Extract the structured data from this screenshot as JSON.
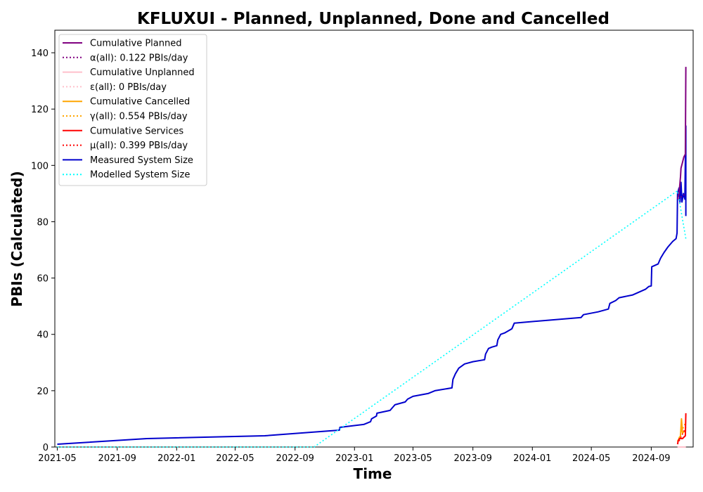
{
  "chart_data": {
    "type": "line",
    "title": "KFLUXUI - Planned, Unplanned, Done  and Cancelled",
    "xlabel": "Time",
    "ylabel": "PBIs (Calculated)",
    "xlim": [
      "2021-04-26",
      "2024-11-26"
    ],
    "ylim": [
      0,
      148
    ],
    "x_ticks": [
      "2021-05",
      "2021-09",
      "2022-01",
      "2022-05",
      "2022-09",
      "2023-01",
      "2023-05",
      "2023-09",
      "2024-01",
      "2024-05",
      "2024-09"
    ],
    "y_ticks": [
      0,
      20,
      40,
      60,
      80,
      100,
      120,
      140
    ],
    "grid": false,
    "legend_position": "upper left",
    "series": [
      {
        "name": "Cumulative Planned",
        "color": "#800080",
        "style": "solid",
        "points": [
          [
            "2024-10-25",
            88
          ],
          [
            "2024-10-28",
            90
          ],
          [
            "2024-10-31",
            96
          ],
          [
            "2024-11-01",
            99
          ],
          [
            "2024-11-04",
            101
          ],
          [
            "2024-11-07",
            103
          ],
          [
            "2024-11-10",
            104
          ],
          [
            "2024-11-11",
            135
          ]
        ]
      },
      {
        "name": "α(all): 0.122 PBIs/day",
        "color": "#800080",
        "style": "dotted",
        "points": [
          [
            "2024-10-25",
            88
          ],
          [
            "2024-11-11",
            90
          ]
        ]
      },
      {
        "name": "Cumulative Unplanned",
        "color": "#ffc0cb",
        "style": "solid",
        "points": [
          [
            "2024-10-25",
            0
          ],
          [
            "2024-11-11",
            0
          ]
        ]
      },
      {
        "name": "ε(all): 0 PBIs/day",
        "color": "#ffc0cb",
        "style": "dotted",
        "points": [
          [
            "2024-10-25",
            0
          ],
          [
            "2024-11-11",
            0
          ]
        ]
      },
      {
        "name": "Cumulative Cancelled",
        "color": "#ffa500",
        "style": "solid",
        "points": [
          [
            "2024-10-25",
            2
          ],
          [
            "2024-10-31",
            4
          ],
          [
            "2024-11-02",
            10
          ],
          [
            "2024-11-04",
            5
          ],
          [
            "2024-11-11",
            6
          ]
        ]
      },
      {
        "name": "γ(all): 0.554 PBIs/day",
        "color": "#ffa500",
        "style": "dotted",
        "points": [
          [
            "2024-10-25",
            2
          ],
          [
            "2024-11-11",
            9
          ]
        ]
      },
      {
        "name": "Cumulative Services",
        "color": "#ff0000",
        "style": "solid",
        "points": [
          [
            "2024-10-25",
            1
          ],
          [
            "2024-10-26",
            2
          ],
          [
            "2024-10-29",
            3
          ],
          [
            "2024-11-04",
            3
          ],
          [
            "2024-11-10",
            4
          ],
          [
            "2024-11-11",
            12
          ]
        ]
      },
      {
        "name": "μ(all): 0.399 PBIs/day",
        "color": "#ff0000",
        "style": "dotted",
        "points": [
          [
            "2024-10-25",
            1
          ],
          [
            "2024-11-11",
            7
          ]
        ]
      },
      {
        "name": "Measured System Size",
        "color": "#0000cd",
        "style": "solid",
        "points": [
          [
            "2021-05-01",
            1
          ],
          [
            "2021-11-01",
            3
          ],
          [
            "2022-07-01",
            4
          ],
          [
            "2022-12-01",
            6
          ],
          [
            "2022-12-02",
            7
          ],
          [
            "2023-01-20",
            8
          ],
          [
            "2023-02-03",
            9
          ],
          [
            "2023-02-05",
            10
          ],
          [
            "2023-02-15",
            11
          ],
          [
            "2023-02-16",
            12
          ],
          [
            "2023-03-15",
            13
          ],
          [
            "2023-03-25",
            15
          ],
          [
            "2023-04-15",
            16
          ],
          [
            "2023-04-20",
            17
          ],
          [
            "2023-05-01",
            18
          ],
          [
            "2023-06-01",
            19
          ],
          [
            "2023-06-15",
            20
          ],
          [
            "2023-07-20",
            21
          ],
          [
            "2023-07-22",
            24
          ],
          [
            "2023-07-27",
            26
          ],
          [
            "2023-08-03",
            28
          ],
          [
            "2023-08-15",
            29.5
          ],
          [
            "2023-09-01",
            30.3
          ],
          [
            "2023-09-25",
            31
          ],
          [
            "2023-09-27",
            33
          ],
          [
            "2023-10-03",
            35
          ],
          [
            "2023-10-10",
            35.5
          ],
          [
            "2023-10-20",
            36
          ],
          [
            "2023-10-22",
            38
          ],
          [
            "2023-10-28",
            40
          ],
          [
            "2023-11-05",
            40.5
          ],
          [
            "2023-11-20",
            42
          ],
          [
            "2023-11-25",
            44
          ],
          [
            "2024-04-10",
            46
          ],
          [
            "2024-04-15",
            47
          ],
          [
            "2024-05-15",
            48
          ],
          [
            "2024-06-05",
            49
          ],
          [
            "2024-06-08",
            51
          ],
          [
            "2024-06-20",
            52
          ],
          [
            "2024-06-27",
            53
          ],
          [
            "2024-07-25",
            54
          ],
          [
            "2024-08-07",
            55
          ],
          [
            "2024-08-20",
            56
          ],
          [
            "2024-08-27",
            57
          ],
          [
            "2024-09-01",
            57.2
          ],
          [
            "2024-09-02",
            64
          ],
          [
            "2024-09-15",
            65
          ],
          [
            "2024-09-20",
            67
          ],
          [
            "2024-09-27",
            69
          ],
          [
            "2024-10-01",
            70
          ],
          [
            "2024-10-05",
            71
          ],
          [
            "2024-10-15",
            73
          ],
          [
            "2024-10-22",
            74
          ],
          [
            "2024-10-24",
            76
          ],
          [
            "2024-10-25",
            90
          ],
          [
            "2024-10-28",
            92
          ],
          [
            "2024-10-30",
            87
          ],
          [
            "2024-11-01",
            94
          ],
          [
            "2024-11-03",
            87
          ],
          [
            "2024-11-06",
            90
          ],
          [
            "2024-11-09",
            88
          ],
          [
            "2024-11-10",
            102
          ],
          [
            "2024-11-11",
            114
          ],
          [
            "2024-11-11",
            82
          ]
        ]
      },
      {
        "name": "Modelled System Size",
        "color": "#00ffff",
        "style": "dotted",
        "points": [
          [
            "2021-05-01",
            0
          ],
          [
            "2022-10-10",
            0
          ],
          [
            "2024-10-25",
            91
          ],
          [
            "2024-11-11",
            74
          ]
        ]
      }
    ]
  }
}
